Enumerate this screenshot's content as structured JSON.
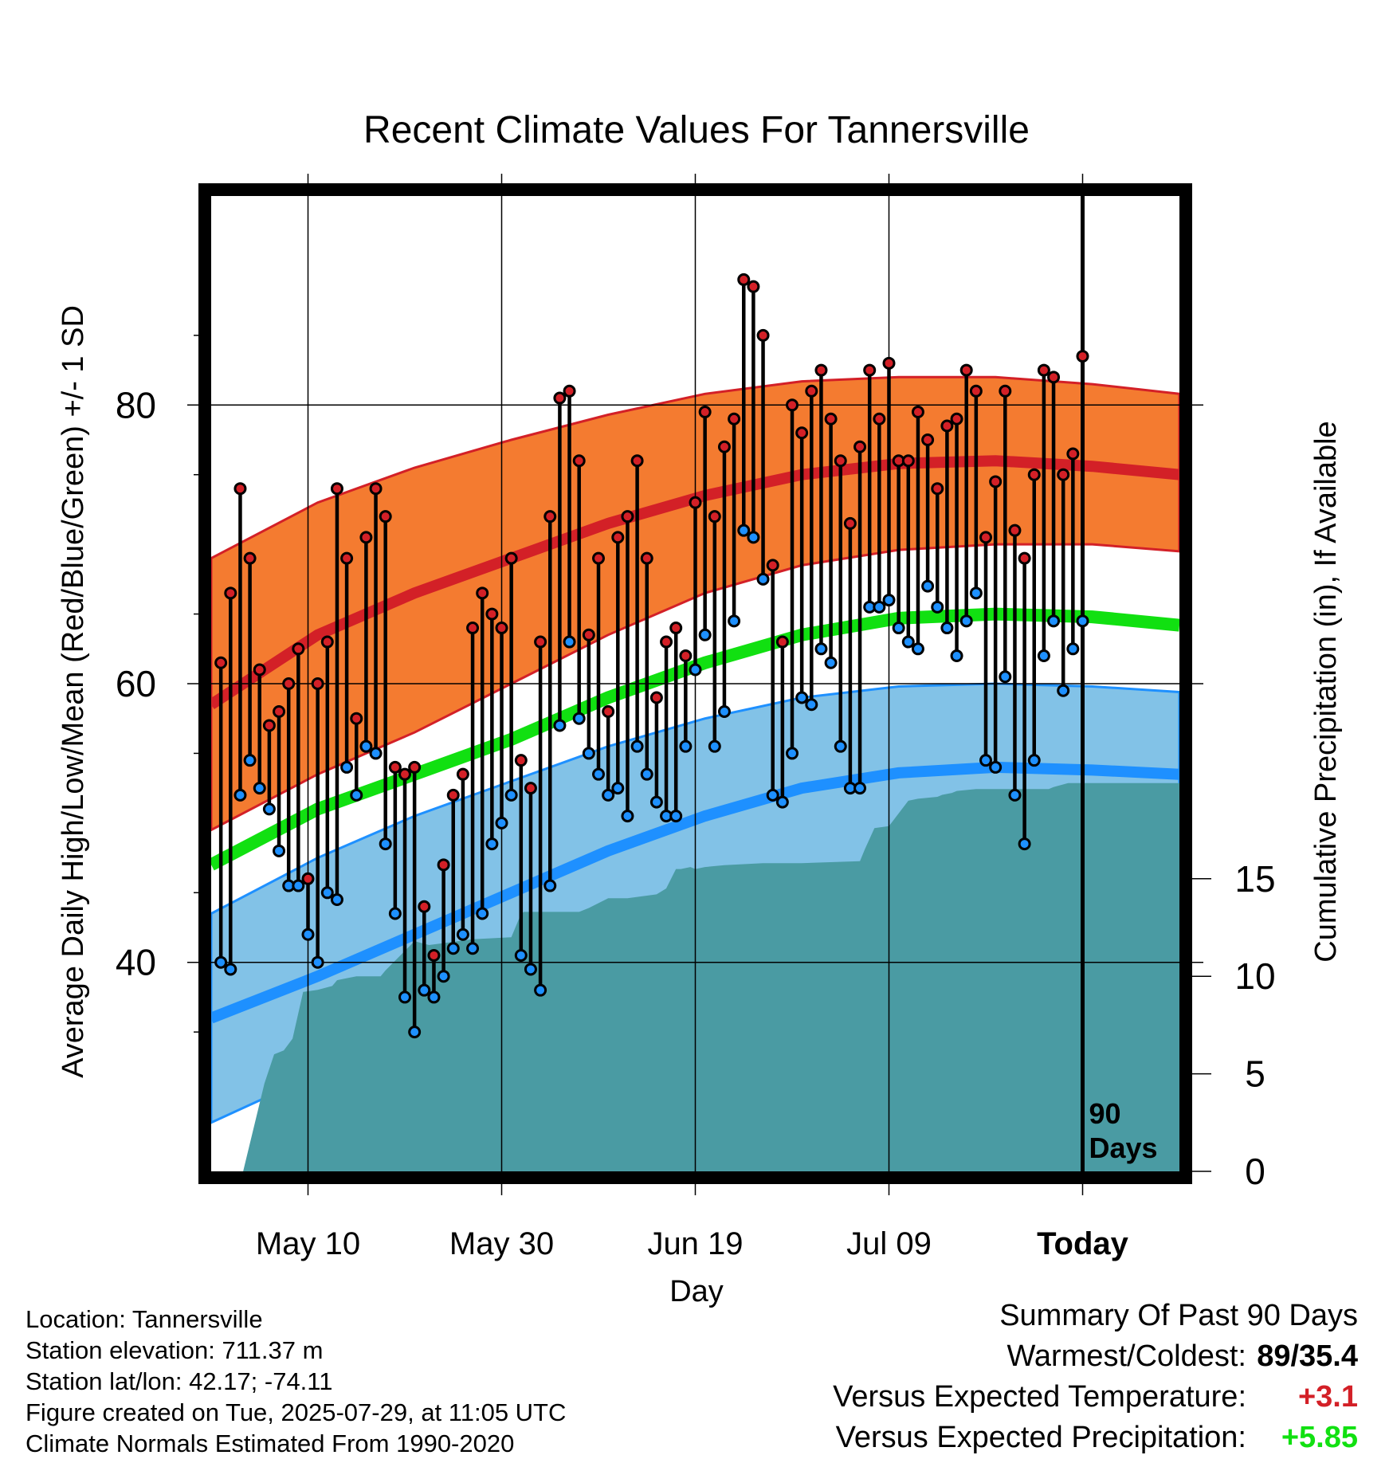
{
  "chart_data": {
    "type": "line",
    "title": "Recent Climate Values For Tannersville",
    "xlabel": "Day",
    "ylabel_left": "Average Daily High/Low/Mean (Red/Blue/Green) +/- 1 SD",
    "ylabel_right": "Cumulative Precipitation (in), If Available",
    "x_ticks": [
      "May 10",
      "May 30",
      "Jun 19",
      "Jul 09",
      "Today"
    ],
    "x_tick_days": [
      9,
      29,
      49,
      69,
      89
    ],
    "x_range_days": [
      -1,
      99
    ],
    "y_left_ticks": [
      40,
      60,
      80
    ],
    "y_left_range": [
      25,
      95
    ],
    "y_right_ticks": [
      0,
      5,
      10,
      15
    ],
    "y_right_range": [
      0,
      50
    ],
    "today_marker_label": "90 Days",
    "normal_max": {
      "days": [
        -1,
        10,
        20,
        30,
        40,
        50,
        60,
        70,
        80,
        90,
        99
      ],
      "mean": [
        58.5,
        63.5,
        66.5,
        69,
        71.5,
        73.5,
        75,
        75.8,
        76,
        75.6,
        75
      ],
      "minus_sd": [
        49.5,
        53.5,
        56.5,
        60,
        63.5,
        66.5,
        68.5,
        69.6,
        70,
        70,
        69.5
      ],
      "plus_sd": [
        69,
        73,
        75.5,
        77.5,
        79.3,
        80.8,
        81.7,
        82,
        82,
        81.5,
        80.8
      ]
    },
    "normal_min": {
      "days": [
        -1,
        10,
        20,
        30,
        40,
        50,
        60,
        70,
        80,
        90,
        99
      ],
      "mean": [
        36,
        39,
        42,
        45,
        48,
        50.5,
        52.5,
        53.6,
        54,
        53.8,
        53.5
      ],
      "minus_sd": [
        28.5,
        32,
        35,
        38.5,
        41.5,
        44.5,
        46.5,
        47.5,
        47.8,
        47.7,
        47.5
      ],
      "plus_sd": [
        43.5,
        47.5,
        50.5,
        53,
        55.5,
        57.5,
        59,
        59.8,
        60,
        59.8,
        59.4
      ]
    },
    "normal_mean": {
      "days": [
        -1,
        10,
        20,
        30,
        40,
        50,
        60,
        70,
        80,
        90,
        99
      ],
      "values": [
        47,
        51,
        53.5,
        56,
        59,
        61.5,
        63.5,
        64.7,
        65,
        64.8,
        64.2
      ]
    },
    "observed": {
      "days": [
        0,
        1,
        2,
        3,
        4,
        5,
        6,
        7,
        8,
        9,
        10,
        11,
        12,
        13,
        14,
        15,
        16,
        17,
        18,
        19,
        20,
        21,
        22,
        23,
        24,
        25,
        26,
        27,
        28,
        29,
        30,
        31,
        32,
        33,
        34,
        35,
        36,
        37,
        38,
        39,
        40,
        41,
        42,
        43,
        44,
        45,
        46,
        47,
        48,
        49,
        50,
        51,
        52,
        53,
        54,
        55,
        56,
        57,
        58,
        59,
        60,
        61,
        62,
        63,
        64,
        65,
        66,
        67,
        68,
        69,
        70,
        71,
        72,
        73,
        74,
        75,
        76,
        77,
        78,
        79,
        80,
        81,
        82,
        83,
        84,
        85,
        86,
        87,
        88,
        89
      ],
      "high": [
        61.5,
        66.5,
        74,
        69,
        61,
        57,
        58,
        60,
        62.5,
        46,
        60,
        63,
        74,
        69,
        57.5,
        70.5,
        74,
        72,
        54,
        53.5,
        54,
        44,
        40.5,
        47,
        52,
        53.5,
        64,
        66.5,
        65,
        64,
        69,
        54.5,
        52.5,
        63,
        72,
        80.5,
        81,
        76,
        63.5,
        69,
        58,
        70.5,
        72,
        76,
        69,
        59,
        63,
        64,
        62,
        73,
        79.5,
        72,
        77,
        79,
        89,
        88.5,
        85,
        68.5,
        63,
        80,
        78,
        81,
        82.5,
        79,
        76,
        71.5,
        77,
        82.5,
        79,
        83,
        76,
        76,
        79.5,
        77.5,
        74,
        78.5,
        79,
        82.5,
        81,
        70.5,
        74.5,
        81,
        71,
        69,
        75,
        82.5,
        82,
        75,
        76.5,
        83.5
      ],
      "low": [
        40,
        39.5,
        52,
        54.5,
        52.5,
        51,
        48,
        45.5,
        45.5,
        42,
        40,
        45,
        44.5,
        54,
        52,
        55.5,
        55,
        48.5,
        43.5,
        37.5,
        35,
        38,
        37.5,
        39,
        41,
        42,
        41,
        43.5,
        48.5,
        50,
        52,
        40.5,
        39.5,
        38,
        45.5,
        57,
        63,
        57.5,
        55,
        53.5,
        52,
        52.5,
        50.5,
        55.5,
        53.5,
        51.5,
        50.5,
        50.5,
        55.5,
        61,
        63.5,
        55.5,
        58,
        64.5,
        71,
        70.5,
        67.5,
        52,
        51.5,
        55,
        59,
        58.5,
        62.5,
        61.5,
        55.5,
        52.5,
        52.5,
        65.5,
        65.5,
        66,
        64,
        63,
        62.5,
        67,
        65.5,
        64,
        62,
        64.5,
        66.5,
        54.5,
        54,
        60.5,
        52,
        48.5,
        54.5,
        62,
        64.5,
        59.5,
        62.5,
        64.5
      ]
    },
    "cumulative_precip": {
      "days": [
        -1,
        2.3,
        4.5,
        5.5,
        6.5,
        7.4,
        8.5,
        10,
        11.5,
        12,
        13,
        14,
        16.5,
        17,
        19,
        20,
        21.5,
        26,
        30,
        31,
        31.3,
        37,
        38,
        40,
        42,
        45,
        46,
        47,
        47.5,
        48.5,
        49,
        50,
        52,
        56,
        60,
        66,
        66.5,
        67.5,
        69,
        71,
        72,
        74,
        74.5,
        75.5,
        76,
        78,
        85.5,
        86,
        87.5,
        88,
        99
      ],
      "values": [
        0,
        0,
        4.5,
        6,
        6.2,
        6.8,
        9.2,
        9.3,
        9.5,
        9.8,
        9.9,
        10,
        10,
        10.3,
        11.3,
        11.8,
        11.6,
        11.9,
        12,
        13.2,
        13.3,
        13.3,
        13.5,
        14,
        14,
        14.2,
        14.5,
        15.5,
        15.5,
        15.6,
        15.5,
        15.6,
        15.7,
        15.8,
        15.8,
        15.9,
        16.5,
        17.6,
        17.7,
        19,
        19.1,
        19.2,
        19.3,
        19.4,
        19.5,
        19.6,
        19.6,
        19.7,
        19.9,
        19.9,
        19.9
      ]
    },
    "colors": {
      "max_band": "#f47b30",
      "max_mean_line": "#d32027",
      "min_band": "#82c2e7",
      "min_mean_line": "#1e90ff",
      "mean_line": "#11e011",
      "precip_fill": "#4a9ba3",
      "high_marker": "#d32027",
      "low_marker": "#1e90ff"
    },
    "grid": true
  },
  "footer": {
    "location": "Location: Tannersville",
    "elevation": "Station elevation: 711.37 m",
    "latlon": "Station lat/lon: 42.17; -74.11",
    "created": "Figure created on Tue, 2025-07-29, at 11:05 UTC",
    "normals": "Climate Normals Estimated From 1990-2020"
  },
  "summary": {
    "title": "Summary Of Past 90 Days",
    "warm_cold_label": "Warmest/Coldest:",
    "warm_cold_value": "89/35.4",
    "temp_label": "Versus Expected Temperature:",
    "temp_value": "+3.1",
    "temp_color": "#d32027",
    "precip_label": "Versus Expected Precipitation:",
    "precip_value": "+5.85",
    "precip_color": "#11e011"
  }
}
